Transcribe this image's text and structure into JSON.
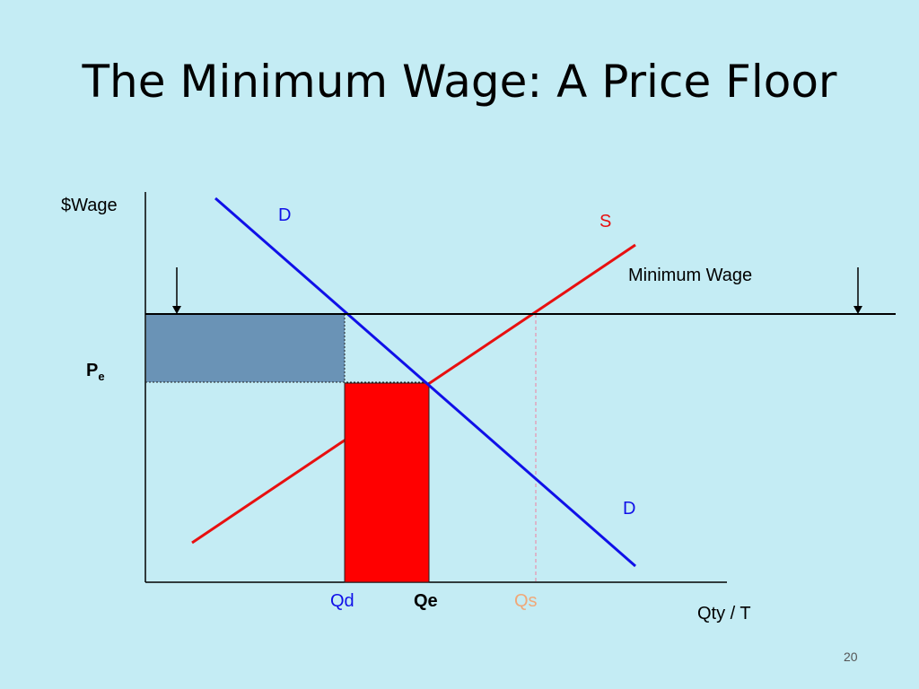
{
  "slide": {
    "title": "The Minimum Wage: A Price Floor",
    "page_number": "20"
  },
  "diagram": {
    "y_axis_label": "$Wage",
    "x_axis_label": "Qty / T",
    "demand_label_top": "D",
    "demand_label_bottom": "D",
    "supply_label": "S",
    "floor_label": "Minimum Wage",
    "pe_main": "P",
    "pe_sub": "e",
    "qd_label": "Qd",
    "qe_label": "Qe",
    "qs_label": "Qs"
  },
  "colors": {
    "demand": "#1010e8",
    "supply": "#e81010",
    "floor_line": "#000000",
    "surplus_rect": "#6a93b6",
    "loss_rect": "#ff0000",
    "qs_label": "#f0a878",
    "qs_dashed": "#f080a0",
    "background": "#c4ecf4"
  }
}
